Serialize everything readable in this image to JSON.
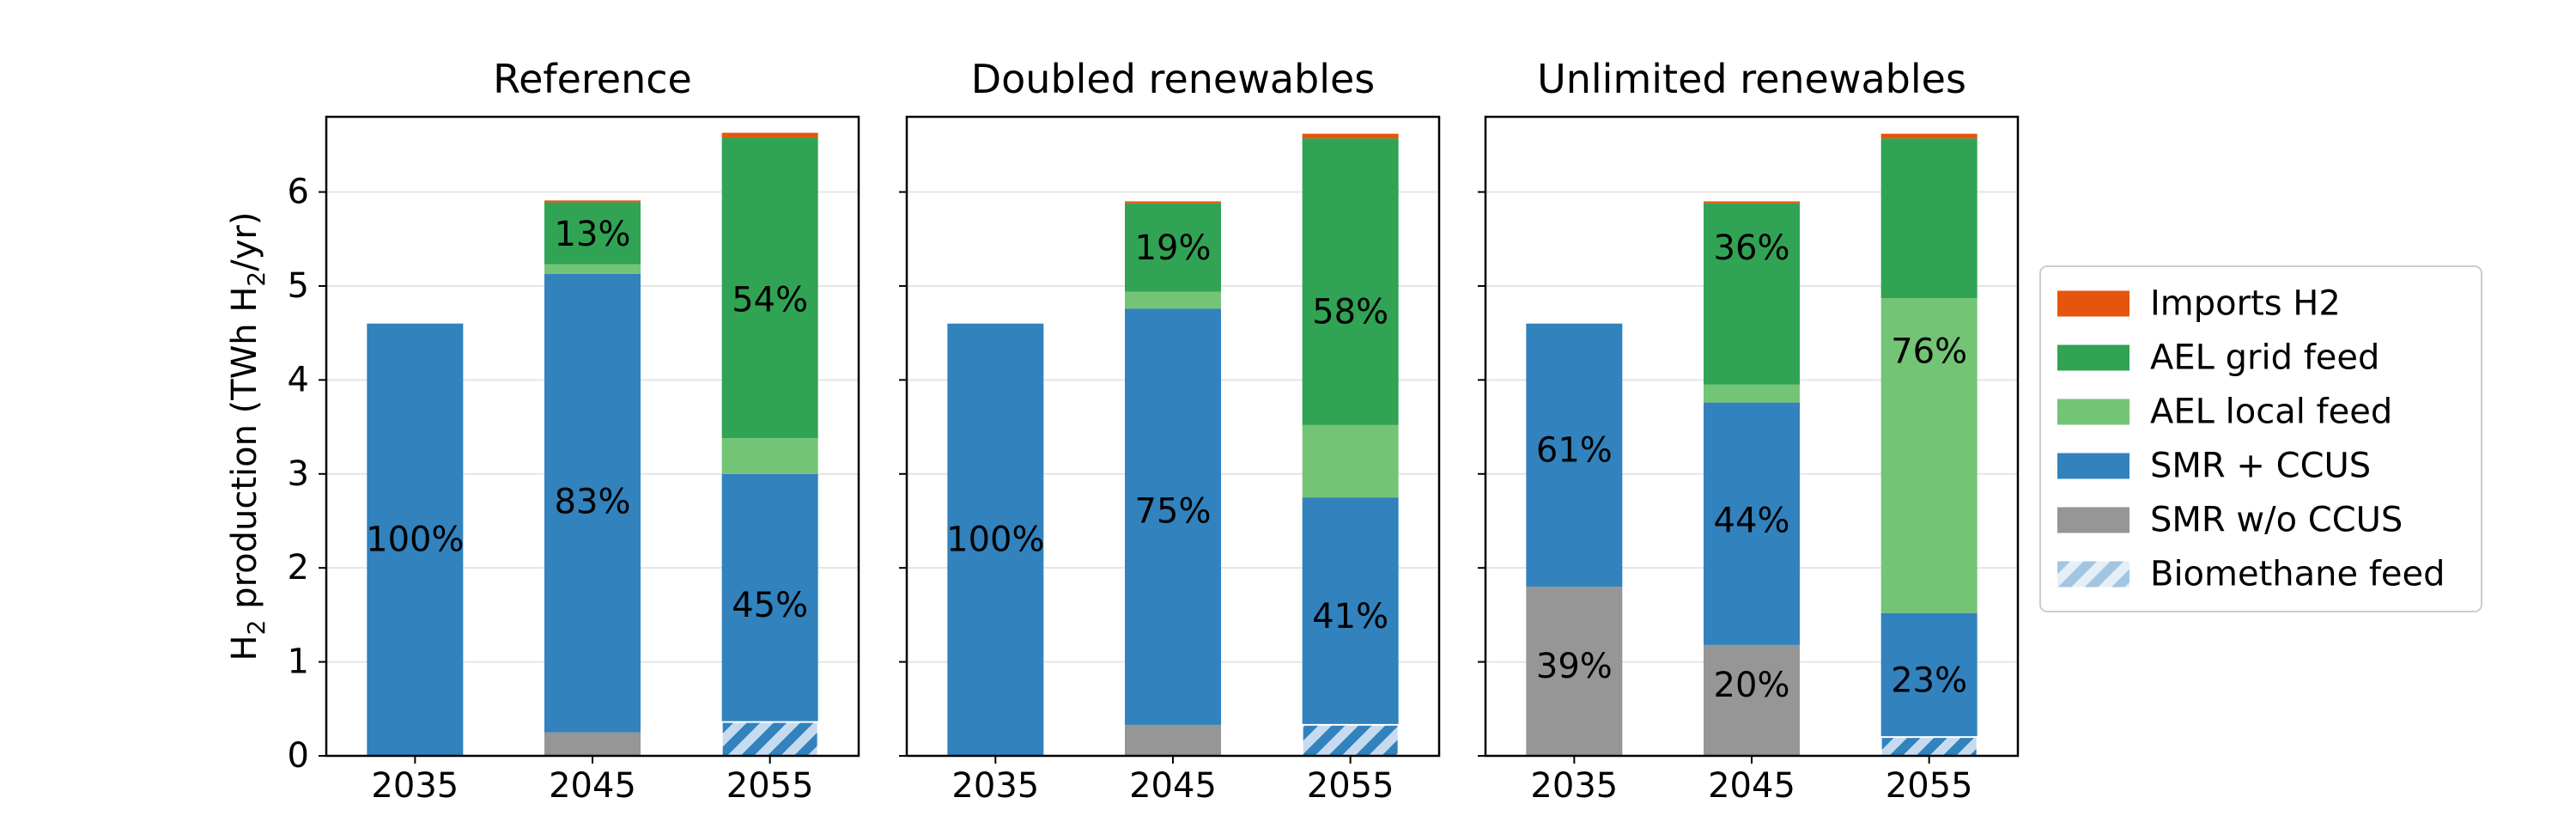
{
  "chart_data": {
    "type": "bar",
    "stacked": true,
    "shared_y": true,
    "ylabel_parts": [
      "H",
      "2",
      " production  (TWh H",
      "2",
      "/yr)"
    ],
    "ylim": [
      0,
      6.8
    ],
    "yticks": [
      0,
      1,
      2,
      3,
      4,
      5,
      6
    ],
    "ytick_labels": [
      "0",
      "1",
      "2",
      "3",
      "4",
      "5",
      "6"
    ],
    "grid": "y",
    "legend_placement": "right",
    "categories": [
      "2035",
      "2045",
      "2055"
    ],
    "legend": [
      {
        "key": "imports",
        "label": "Imports H2",
        "color": "#e6550d"
      },
      {
        "key": "ael_grid",
        "label": "AEL grid feed",
        "color": "#31a354"
      },
      {
        "key": "ael_local",
        "label": "AEL local feed",
        "color": "#74c476"
      },
      {
        "key": "smr_ccus",
        "label": "SMR + CCUS",
        "color": "#3182bd"
      },
      {
        "key": "smr_no_ccus",
        "label": "SMR w/o CCUS",
        "color": "#969696"
      },
      {
        "key": "biomethane",
        "label": "Biomethane feed",
        "color": "#c6dbef",
        "pattern": "hatch"
      }
    ],
    "panels": [
      {
        "title": "Reference",
        "series": {
          "smr_no_ccus": [
            0,
            0.25,
            0
          ],
          "smr_ccus": [
            4.6,
            4.88,
            3.0
          ],
          "ael_local": [
            0,
            0.1,
            0.38
          ],
          "ael_grid": [
            0,
            0.66,
            3.2
          ],
          "imports": [
            0,
            0.02,
            0.05
          ]
        },
        "biomethane": [
          0,
          0,
          0.36
        ],
        "labels": [
          {
            "x": "2035",
            "y": 2.3,
            "text": "100%"
          },
          {
            "x": "2045",
            "y": 2.7,
            "text": "83%"
          },
          {
            "x": "2045",
            "y": 5.55,
            "text": "13%"
          },
          {
            "x": "2055",
            "y": 1.6,
            "text": "45%"
          },
          {
            "x": "2055",
            "y": 4.85,
            "text": "54%"
          }
        ]
      },
      {
        "title": "Doubled renewables",
        "series": {
          "smr_no_ccus": [
            0,
            0.33,
            0
          ],
          "smr_ccus": [
            4.6,
            4.43,
            2.75
          ],
          "ael_local": [
            0,
            0.18,
            0.77
          ],
          "ael_grid": [
            0,
            0.94,
            3.05
          ],
          "imports": [
            0,
            0.02,
            0.05
          ]
        },
        "biomethane": [
          0,
          0,
          0.33
        ],
        "labels": [
          {
            "x": "2035",
            "y": 2.3,
            "text": "100%"
          },
          {
            "x": "2045",
            "y": 2.6,
            "text": "75%"
          },
          {
            "x": "2045",
            "y": 5.4,
            "text": "19%"
          },
          {
            "x": "2055",
            "y": 1.48,
            "text": "41%"
          },
          {
            "x": "2055",
            "y": 4.72,
            "text": "58%"
          }
        ]
      },
      {
        "title": "Unlimited renewables",
        "series": {
          "smr_no_ccus": [
            1.8,
            1.18,
            0
          ],
          "smr_ccus": [
            2.8,
            2.58,
            1.52
          ],
          "ael_local": [
            0,
            0.19,
            3.35
          ],
          "ael_grid": [
            0,
            1.93,
            1.7
          ],
          "imports": [
            0,
            0.02,
            0.05
          ]
        },
        "biomethane": [
          0,
          0,
          0.2
        ],
        "labels": [
          {
            "x": "2035",
            "y": 3.25,
            "text": "61%"
          },
          {
            "x": "2035",
            "y": 0.95,
            "text": "39%"
          },
          {
            "x": "2045",
            "y": 5.4,
            "text": "36%"
          },
          {
            "x": "2045",
            "y": 2.5,
            "text": "44%"
          },
          {
            "x": "2045",
            "y": 0.75,
            "text": "20%"
          },
          {
            "x": "2055",
            "y": 4.3,
            "text": "76%"
          },
          {
            "x": "2055",
            "y": 0.8,
            "text": "23%"
          }
        ]
      }
    ]
  }
}
